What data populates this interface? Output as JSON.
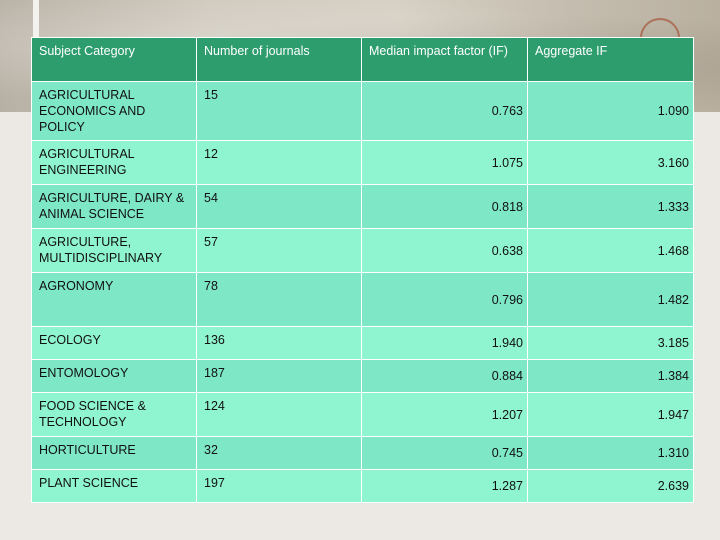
{
  "table": {
    "headers": [
      "Subject Category",
      "Number of journals",
      "Median impact factor (IF)",
      "Aggregate IF"
    ],
    "rows": [
      {
        "category": "AGRICULTURAL ECONOMICS AND POLICY",
        "journals": "15",
        "median_if": "0.763",
        "aggregate_if": "1.090"
      },
      {
        "category": "AGRICULTURAL ENGINEERING",
        "journals": "12",
        "median_if": "1.075",
        "aggregate_if": "3.160"
      },
      {
        "category": "AGRICULTURE, DAIRY & ANIMAL SCIENCE",
        "journals": "54",
        "median_if": "0.818",
        "aggregate_if": "1.333"
      },
      {
        "category": "AGRICULTURE, MULTIDISCIPLINARY",
        "journals": "57",
        "median_if": "0.638",
        "aggregate_if": "1.468"
      },
      {
        "category": "AGRONOMY",
        "journals": "78",
        "median_if": "0.796",
        "aggregate_if": "1.482"
      },
      {
        "category": "ECOLOGY",
        "journals": "136",
        "median_if": "1.940",
        "aggregate_if": "3.185"
      },
      {
        "category": "ENTOMOLOGY",
        "journals": "187",
        "median_if": "0.884",
        "aggregate_if": "1.384"
      },
      {
        "category": "FOOD SCIENCE & TECHNOLOGY",
        "journals": "124",
        "median_if": "1.207",
        "aggregate_if": "1.947"
      },
      {
        "category": "HORTICULTURE",
        "journals": "32",
        "median_if": "0.745",
        "aggregate_if": "1.310"
      },
      {
        "category": "PLANT SCIENCE",
        "journals": "197",
        "median_if": "1.287",
        "aggregate_if": "2.639"
      }
    ]
  },
  "colors": {
    "header_bg": "#2e9d6e",
    "row_bg_a": "#7ee8c6",
    "row_bg_b": "#8ff5d1"
  }
}
